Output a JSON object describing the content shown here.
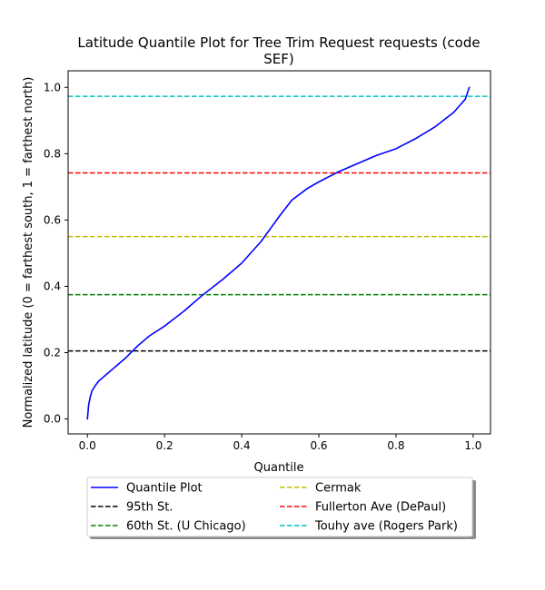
{
  "chart_data": {
    "type": "line",
    "title_lines": [
      "Latitude Quantile Plot for Tree Trim Request  requests (code",
      "SEF)"
    ],
    "xlabel": "Quantile",
    "ylabel": "Normalized latitude (0 = farthest south, 1 = farthest north)",
    "xlim": [
      -0.05,
      1.045
    ],
    "ylim": [
      -0.045,
      1.05
    ],
    "xticks": [
      0.0,
      0.2,
      0.4,
      0.6,
      0.8,
      1.0
    ],
    "xtick_labels": [
      "0.0",
      "0.2",
      "0.4",
      "0.6",
      "0.8",
      "1.0"
    ],
    "yticks": [
      0.0,
      0.2,
      0.4,
      0.6,
      0.8,
      1.0
    ],
    "ytick_labels": [
      "0.0",
      "0.2",
      "0.4",
      "0.6",
      "0.8",
      "1.0"
    ],
    "grid": false,
    "legend_placement": "below",
    "series": [
      {
        "name": "Quantile Plot",
        "color": "#0000ff",
        "style": "solid",
        "x": [
          0.0,
          0.003,
          0.007,
          0.012,
          0.02,
          0.03,
          0.05,
          0.07,
          0.1,
          0.13,
          0.16,
          0.2,
          0.25,
          0.3,
          0.35,
          0.4,
          0.45,
          0.5,
          0.53,
          0.57,
          0.6,
          0.65,
          0.7,
          0.75,
          0.8,
          0.85,
          0.9,
          0.95,
          0.98,
          0.99
        ],
        "y": [
          0.0,
          0.04,
          0.065,
          0.085,
          0.1,
          0.115,
          0.135,
          0.155,
          0.185,
          0.22,
          0.25,
          0.28,
          0.325,
          0.375,
          0.42,
          0.47,
          0.535,
          0.615,
          0.66,
          0.695,
          0.715,
          0.745,
          0.77,
          0.795,
          0.815,
          0.845,
          0.88,
          0.925,
          0.965,
          1.0
        ]
      }
    ],
    "reference_lines": [
      {
        "name": "95th St.",
        "y": 0.205,
        "color": "#000000"
      },
      {
        "name": "60th St. (U Chicago)",
        "y": 0.375,
        "color": "#008000"
      },
      {
        "name": "Cermak",
        "y": 0.55,
        "color": "#bfbf00"
      },
      {
        "name": "Fullerton Ave (DePaul)",
        "y": 0.742,
        "color": "#ff0000"
      },
      {
        "name": "Touhy ave (Rogers Park)",
        "y": 0.973,
        "color": "#00bfbf"
      }
    ]
  }
}
